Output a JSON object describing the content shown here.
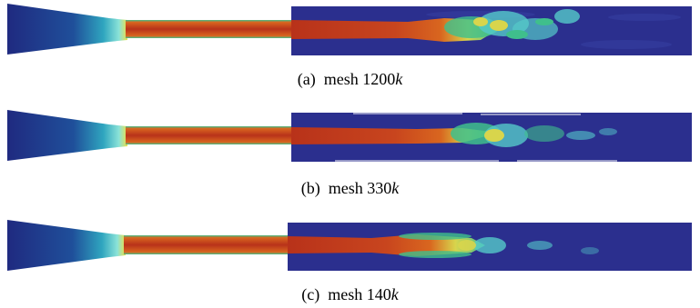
{
  "figure": {
    "panels": [
      {
        "label": "(a)",
        "word": "mesh",
        "value": "1200",
        "unit": "k"
      },
      {
        "label": "(b)",
        "word": "mesh",
        "value": "330",
        "unit": "k"
      },
      {
        "label": "(c)",
        "word": "mesh",
        "value": "140",
        "unit": "k"
      }
    ],
    "colors": {
      "background_field": "#2b2f8e",
      "nozzle_dark": "#1f2f86",
      "nozzle_mid": "#2a8fb7",
      "nozzle_light": "#8be3d8",
      "throat_yellow": "#e8e04a",
      "jet_core": "#b8321a",
      "jet_orange": "#d9661f",
      "plume_yellow": "#d8d54c",
      "plume_green": "#3fbf8c",
      "plume_cyan": "#55c9c9"
    }
  }
}
